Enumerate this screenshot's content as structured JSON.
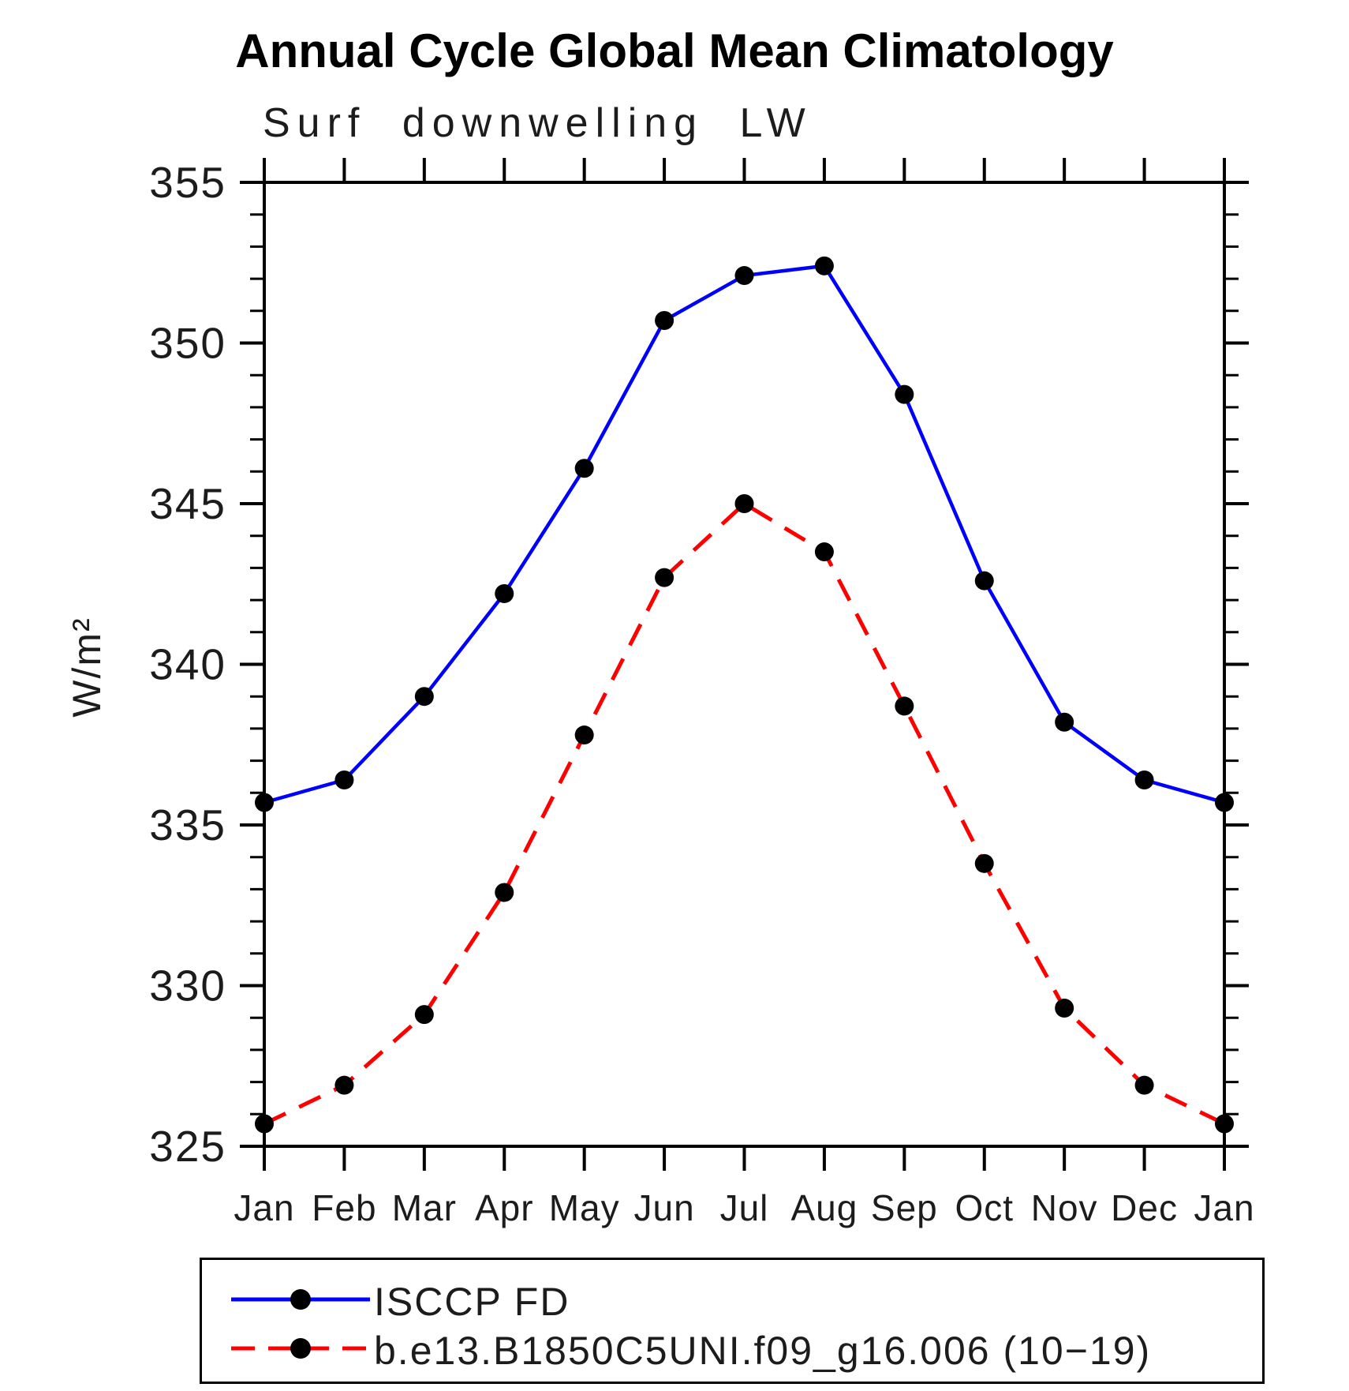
{
  "header": {
    "title": "Annual Cycle Global Mean Climatology",
    "subtitle": "Surf downwelling LW"
  },
  "chart_data": {
    "type": "line",
    "title": "Annual Cycle Global Mean Climatology",
    "subtitle": "Surf downwelling LW",
    "xlabel": "",
    "ylabel": "W/m²",
    "categories": [
      "Jan",
      "Feb",
      "Mar",
      "Apr",
      "May",
      "Jun",
      "Jul",
      "Aug",
      "Sep",
      "Oct",
      "Nov",
      "Dec",
      "Jan"
    ],
    "ylim": [
      325,
      355
    ],
    "ytick_major": [
      325,
      330,
      335,
      340,
      345,
      350,
      355
    ],
    "ytick_minor_step": 1,
    "grid": false,
    "legend_position": "bottom",
    "frame_color": "#000000",
    "marker_color": "#000000",
    "series": [
      {
        "name": "ISCCP FD",
        "color": "#0000FF",
        "style": "solid",
        "marker": "circle",
        "values": [
          335.7,
          336.4,
          339.0,
          342.2,
          346.1,
          350.7,
          352.1,
          352.4,
          348.4,
          342.6,
          338.2,
          336.4,
          335.7
        ]
      },
      {
        "name": "b.e13.B1850C5UNI.f09_g16.006 (10−19)",
        "color": "#FF0000",
        "style": "dashed",
        "marker": "circle",
        "values": [
          325.7,
          326.9,
          329.1,
          332.9,
          337.8,
          342.7,
          345.0,
          343.5,
          338.7,
          333.8,
          329.3,
          326.9,
          325.7
        ]
      }
    ]
  }
}
